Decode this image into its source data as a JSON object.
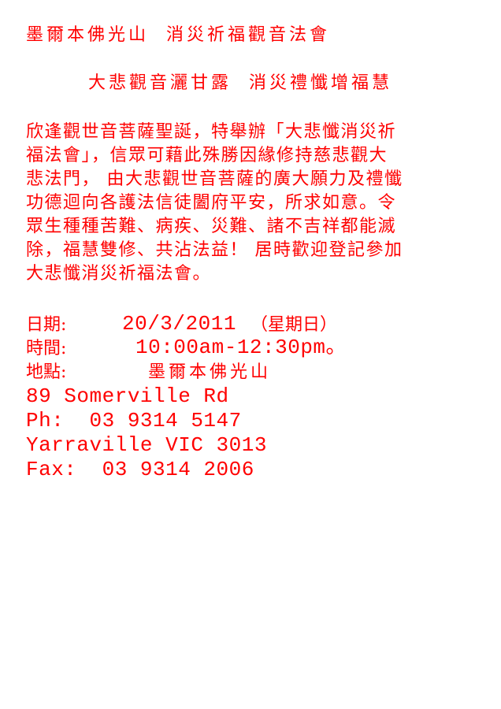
{
  "header": {
    "title": "墨爾本佛光山  消災祈福觀音法會",
    "subtitle": "大悲觀音灑甘露  消災禮懺增福慧"
  },
  "body": {
    "paragraph_lines": [
      "欣逢觀世音菩薩聖誕，特舉辦「大悲懺消災祈",
      "福法會」，信眾可藉此殊勝因緣修持慈悲觀大",
      "悲法門， 由大悲觀世音菩薩的廣大願力及禮懺",
      "功德迴向各護法信徒闔府平安，所求如意。令",
      "眾生種種苦難、病疾、災難、諸不吉祥都能滅",
      "除，福慧雙修、共沾法益！ 居時歡迎登記參加",
      "大悲懺消災祈福法會。"
    ]
  },
  "details": {
    "date_label": "日期:",
    "date_value": "20/3/2011",
    "date_weekday": "（星期日）",
    "time_label": "時間:",
    "time_value": "10:00am-12:30pm。",
    "place_label": "地點:",
    "place_value": "墨爾本佛光山",
    "address_line1": "89 Somerville Rd",
    "phone": "Ph:  03 9314 5147",
    "address_line2": "Yarraville VIC 3013",
    "fax": "Fax:  03 9314 2006"
  },
  "colors": {
    "text": "#ff0000",
    "background": "#ffffff"
  }
}
